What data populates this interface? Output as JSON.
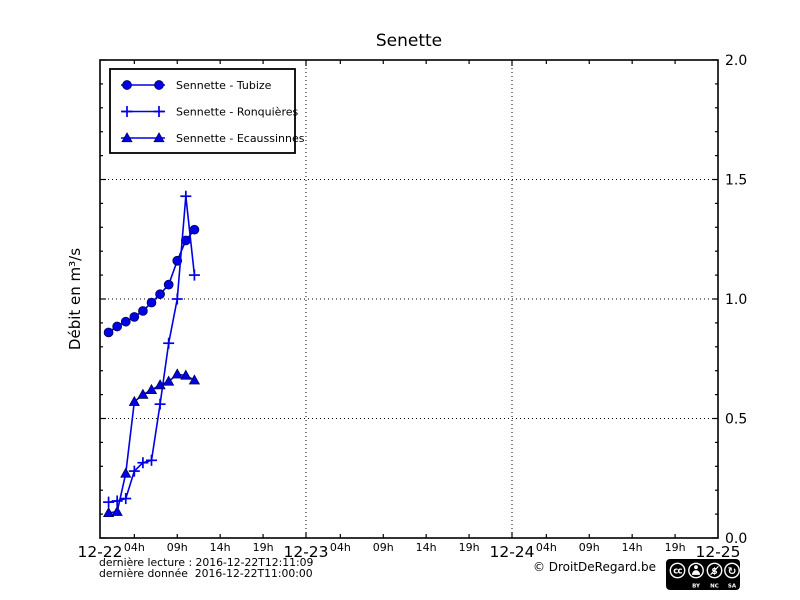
{
  "figure": {
    "title": "Senette",
    "ylabel": "Débit en m³/s"
  },
  "footer": {
    "last_read_line": "dernière lecture : 2016-12-22T12:11:09",
    "last_data_line": "dernière donnée  2016-12-22T11:00:00",
    "copyright": "© DroitDeRegard.be",
    "license": {
      "name": "cc-by-nc-sa",
      "cc_text": "cc",
      "labels": [
        "BY",
        "NC",
        "SA"
      ]
    }
  },
  "colors": {
    "series_blue": "#0000e6",
    "axis": "#000000",
    "background": "#ffffff"
  },
  "chart_data": {
    "type": "line",
    "title": "Senette",
    "ylabel": "Débit en m³/s",
    "ylim": [
      0.0,
      2.0
    ],
    "yticks": [
      0.0,
      0.5,
      1.0,
      1.5,
      2.0
    ],
    "ytick_labels": [
      "0.0",
      "0.5",
      "1.0",
      "1.5",
      "2.0"
    ],
    "ytick_side": "right",
    "y_minor_step": 0.1,
    "y_gridlines": [
      0.5,
      1.0,
      1.5
    ],
    "x_unit": "hours since 2016-12-22 00:00",
    "x_total_hours": 72,
    "x_day_labels": [
      "12-22",
      "12-23",
      "12-24",
      "12-25"
    ],
    "x_hour_labels": [
      "04h",
      "09h",
      "14h",
      "19h"
    ],
    "x_hour_offsets": [
      4,
      9,
      14,
      19
    ],
    "x_gridlines_hours": [
      24,
      48
    ],
    "grid_style": "dotted",
    "legend_position": "upper-left",
    "series": [
      {
        "name": "Sennette - Tubize",
        "marker": "circle",
        "x_hours": [
          1,
          2,
          3,
          4,
          5,
          6,
          7,
          8,
          9,
          10,
          11
        ],
        "values": [
          0.86,
          0.885,
          0.905,
          0.925,
          0.95,
          0.985,
          1.02,
          1.06,
          1.16,
          1.245,
          1.29
        ]
      },
      {
        "name": "Sennette - Ronquières",
        "marker": "plus",
        "x_hours": [
          1,
          2,
          3,
          4,
          5,
          6,
          7,
          8,
          9,
          10,
          11
        ],
        "values": [
          0.15,
          0.155,
          0.165,
          0.28,
          0.315,
          0.325,
          0.56,
          0.815,
          1.0,
          1.43,
          1.1
        ]
      },
      {
        "name": "Sennette - Ecaussinnes",
        "marker": "triangle",
        "x_hours": [
          1,
          2,
          3,
          4,
          5,
          6,
          7,
          8,
          9,
          10,
          11
        ],
        "values": [
          0.105,
          0.11,
          0.27,
          0.57,
          0.6,
          0.62,
          0.64,
          0.655,
          0.685,
          0.68,
          0.66
        ]
      }
    ]
  }
}
